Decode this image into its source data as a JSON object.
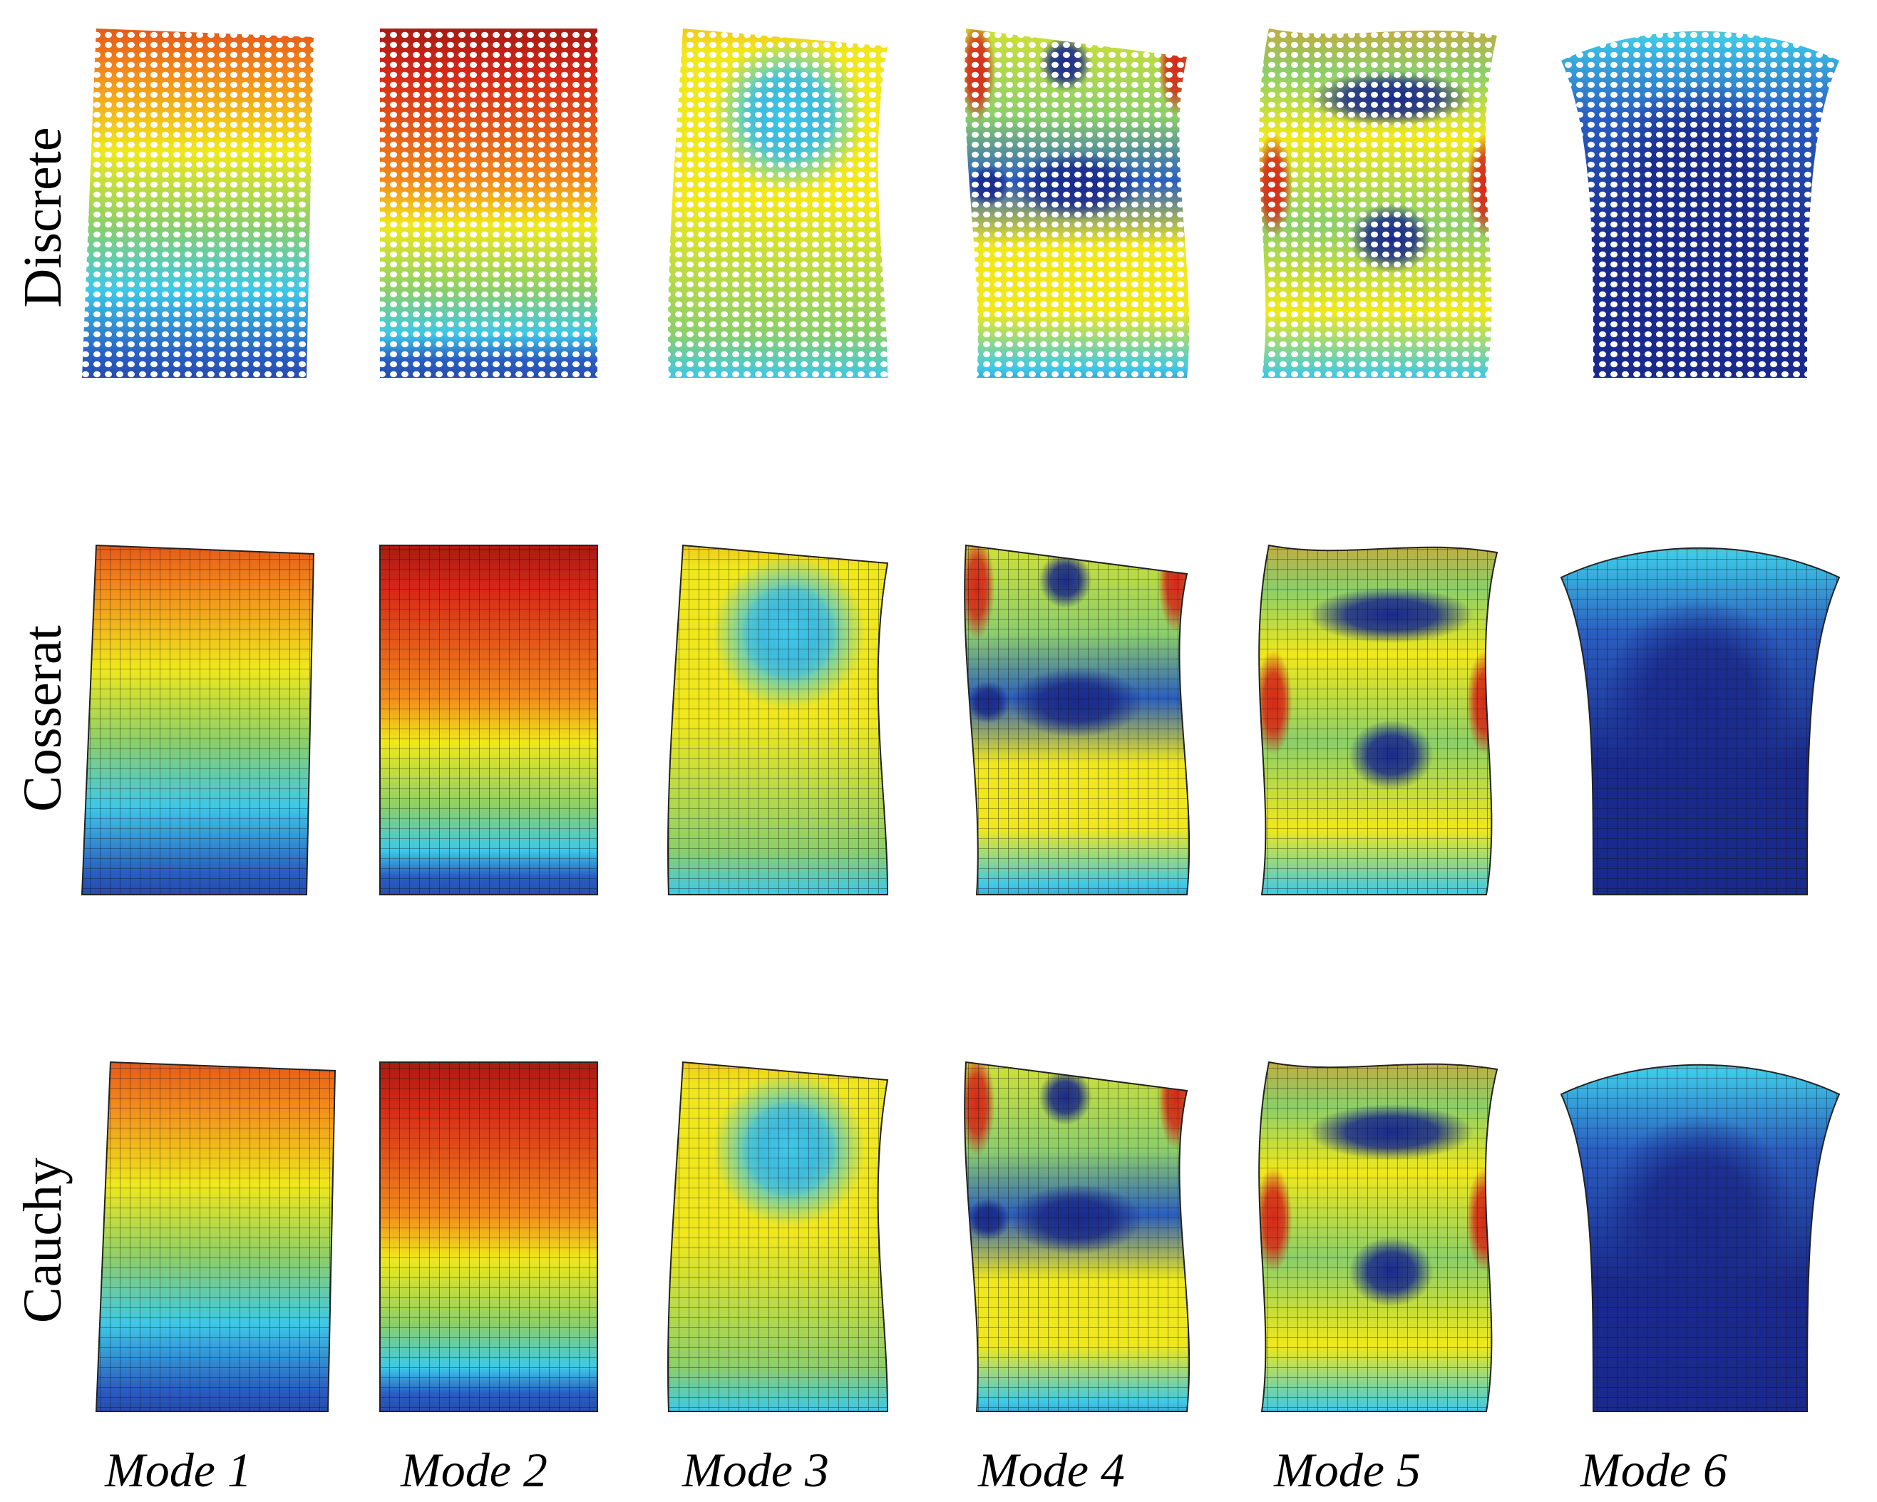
{
  "figure": {
    "rows": [
      {
        "id": "discrete",
        "label": "Discrete",
        "style": "lattice"
      },
      {
        "id": "cosserat",
        "label": "Cosserat",
        "style": "mesh"
      },
      {
        "id": "cauchy",
        "label": "Cauchy",
        "style": "mesh"
      }
    ],
    "columns": [
      {
        "id": "mode-1",
        "label": "Mode 1"
      },
      {
        "id": "mode-2",
        "label": "Mode 2"
      },
      {
        "id": "mode-3",
        "label": "Mode 3"
      },
      {
        "id": "mode-4",
        "label": "Mode 4"
      },
      {
        "id": "mode-5",
        "label": "Mode 5"
      },
      {
        "id": "mode-6",
        "label": "Mode 6"
      }
    ],
    "colormap": [
      "#1a2a8c",
      "#2a5ec0",
      "#3ec8e8",
      "#8ccf6a",
      "#f0e81c",
      "#f28c1c",
      "#d62818",
      "#7a1010"
    ]
  }
}
